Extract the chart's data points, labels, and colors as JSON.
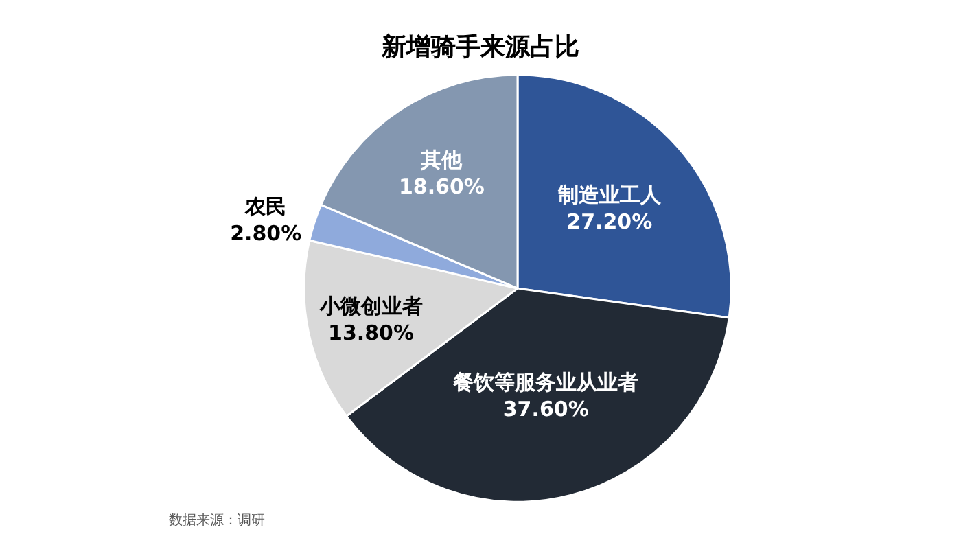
{
  "chart_data": {
    "type": "pie",
    "title": "新增骑手来源占比",
    "categories": [
      "制造业工人",
      "餐饮等服务业从业者",
      "小微创业者",
      "农民",
      "其他"
    ],
    "values": [
      27.2,
      37.6,
      13.8,
      2.8,
      18.6
    ],
    "value_labels": [
      "27.20%",
      "37.60%",
      "13.80%",
      "2.80%",
      "18.60%"
    ],
    "colors": [
      "#2f5597",
      "#222a35",
      "#d9d9d9",
      "#8faadc",
      "#8497b0"
    ],
    "annotations": [
      "数据来源：调研"
    ],
    "legend": false
  }
}
